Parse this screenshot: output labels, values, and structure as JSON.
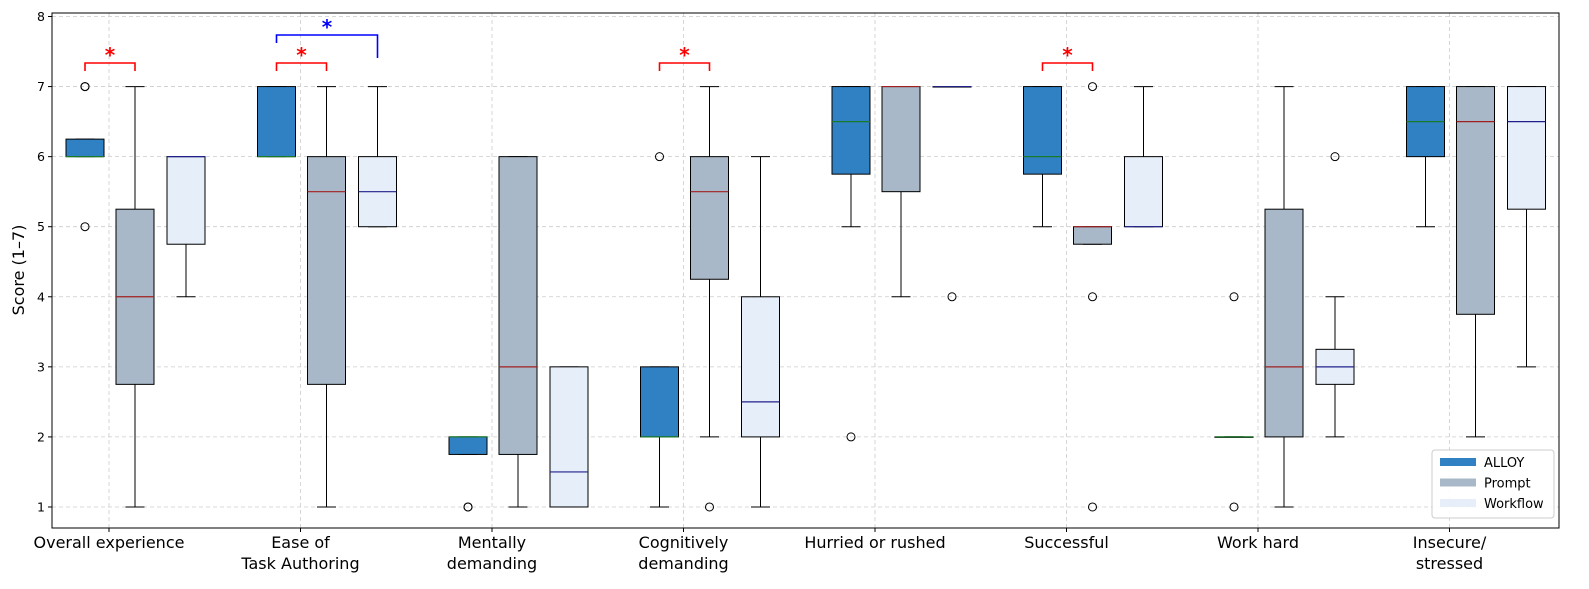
{
  "chart_data": {
    "type": "boxplot",
    "ylabel": "Score (1–7)",
    "ylim": [
      0.7,
      8.05
    ],
    "yticks": [
      "1",
      "2",
      "3",
      "4",
      "5",
      "6",
      "7",
      "8"
    ],
    "grid": true,
    "legend_position": "bottom-right",
    "colors": {
      "ALLOY": "#3080c4",
      "Prompt": "#a8b8c8",
      "Workflow": "#e6eef9"
    },
    "median_colors": {
      "ALLOY": "#1a7a2a",
      "Prompt": "#a02020",
      "Workflow": "#20208a"
    },
    "series": [
      {
        "name": "ALLOY",
        "label": "ALLOY"
      },
      {
        "name": "Prompt",
        "label": "Prompt"
      },
      {
        "name": "Workflow",
        "label": "Workflow"
      }
    ],
    "categories": [
      {
        "label": [
          "Overall experience"
        ],
        "boxes": [
          {
            "q1": 6,
            "median": 6,
            "q3": 6.25,
            "whislo": 6,
            "whishi": 6.25,
            "fliers": [
              5,
              7,
              7
            ]
          },
          {
            "q1": 2.75,
            "median": 4,
            "q3": 5.25,
            "whislo": 1,
            "whishi": 7,
            "fliers": []
          },
          {
            "q1": 4.75,
            "median": 6,
            "q3": 6,
            "whislo": 4,
            "whishi": 6,
            "fliers": []
          }
        ]
      },
      {
        "label": [
          "Ease of",
          "Task Authoring"
        ],
        "boxes": [
          {
            "q1": 6,
            "median": 6,
            "q3": 7,
            "whislo": 6,
            "whishi": 7,
            "fliers": []
          },
          {
            "q1": 2.75,
            "median": 5.5,
            "q3": 6,
            "whislo": 1,
            "whishi": 7,
            "fliers": []
          },
          {
            "q1": 5,
            "median": 5.5,
            "q3": 6,
            "whislo": 5,
            "whishi": 7,
            "fliers": []
          }
        ]
      },
      {
        "label": [
          "Mentally",
          "demanding"
        ],
        "boxes": [
          {
            "q1": 1.75,
            "median": 2,
            "q3": 2,
            "whislo": 1.75,
            "whishi": 2,
            "fliers": [
              1,
              1
            ]
          },
          {
            "q1": 1.75,
            "median": 3,
            "q3": 6,
            "whislo": 1,
            "whishi": 6,
            "fliers": []
          },
          {
            "q1": 1,
            "median": 1.5,
            "q3": 3,
            "whislo": 1,
            "whishi": 3,
            "fliers": []
          }
        ]
      },
      {
        "label": [
          "Cognitively",
          "demanding"
        ],
        "boxes": [
          {
            "q1": 2,
            "median": 2,
            "q3": 3,
            "whislo": 1,
            "whishi": 3,
            "fliers": [
              6
            ]
          },
          {
            "q1": 4.25,
            "median": 5.5,
            "q3": 6,
            "whislo": 2,
            "whishi": 7,
            "fliers": [
              1
            ]
          },
          {
            "q1": 2,
            "median": 2.5,
            "q3": 4,
            "whislo": 1,
            "whishi": 6,
            "fliers": []
          }
        ]
      },
      {
        "label": [
          "Hurried or rushed"
        ],
        "boxes": [
          {
            "q1": 5.75,
            "median": 6.5,
            "q3": 7,
            "whislo": 5,
            "whishi": 7,
            "fliers": [
              2
            ]
          },
          {
            "q1": 5.5,
            "median": 7,
            "q3": 7,
            "whislo": 4,
            "whishi": 7,
            "fliers": []
          },
          {
            "q1": 7,
            "median": 7,
            "q3": 7,
            "whislo": 7,
            "whishi": 7,
            "fliers": [
              4
            ]
          }
        ]
      },
      {
        "label": [
          "Successful"
        ],
        "boxes": [
          {
            "q1": 5.75,
            "median": 6,
            "q3": 7,
            "whislo": 5,
            "whishi": 7,
            "fliers": []
          },
          {
            "q1": 4.75,
            "median": 5,
            "q3": 5,
            "whislo": 4.75,
            "whishi": 5,
            "fliers": [
              7,
              4,
              1
            ]
          },
          {
            "q1": 5,
            "median": 5,
            "q3": 6,
            "whislo": 5,
            "whishi": 7,
            "fliers": []
          }
        ]
      },
      {
        "label": [
          "Work hard"
        ],
        "boxes": [
          {
            "q1": 2,
            "median": 2,
            "q3": 2,
            "whislo": 2,
            "whishi": 2,
            "fliers": [
              4,
              1
            ]
          },
          {
            "q1": 2,
            "median": 3,
            "q3": 5.25,
            "whislo": 1,
            "whishi": 7,
            "fliers": []
          },
          {
            "q1": 2.75,
            "median": 3,
            "q3": 3.25,
            "whislo": 2,
            "whishi": 4,
            "fliers": [
              6
            ]
          }
        ]
      },
      {
        "label": [
          "Insecure/",
          "stressed"
        ],
        "boxes": [
          {
            "q1": 6,
            "median": 6.5,
            "q3": 7,
            "whislo": 5,
            "whishi": 7,
            "fliers": []
          },
          {
            "q1": 3.75,
            "median": 6.5,
            "q3": 7,
            "whislo": 2,
            "whishi": 7,
            "fliers": []
          },
          {
            "q1": 5.25,
            "median": 6.5,
            "q3": 7,
            "whislo": 3,
            "whishi": 7,
            "fliers": []
          }
        ]
      }
    ],
    "significance": [
      {
        "category": 0,
        "from_series": 0,
        "to_series": 1,
        "level": "low",
        "color": "#ff0000",
        "label": "*"
      },
      {
        "category": 1,
        "from_series": 0,
        "to_series": 1,
        "level": "low",
        "color": "#ff0000",
        "label": "*"
      },
      {
        "category": 1,
        "from_series": 0,
        "to_series": 2,
        "level": "high",
        "color": "#0000ff",
        "label": "*"
      },
      {
        "category": 3,
        "from_series": 0,
        "to_series": 1,
        "level": "low",
        "color": "#ff0000",
        "label": "*"
      },
      {
        "category": 5,
        "from_series": 0,
        "to_series": 1,
        "level": "low",
        "color": "#ff0000",
        "label": "*"
      }
    ]
  }
}
